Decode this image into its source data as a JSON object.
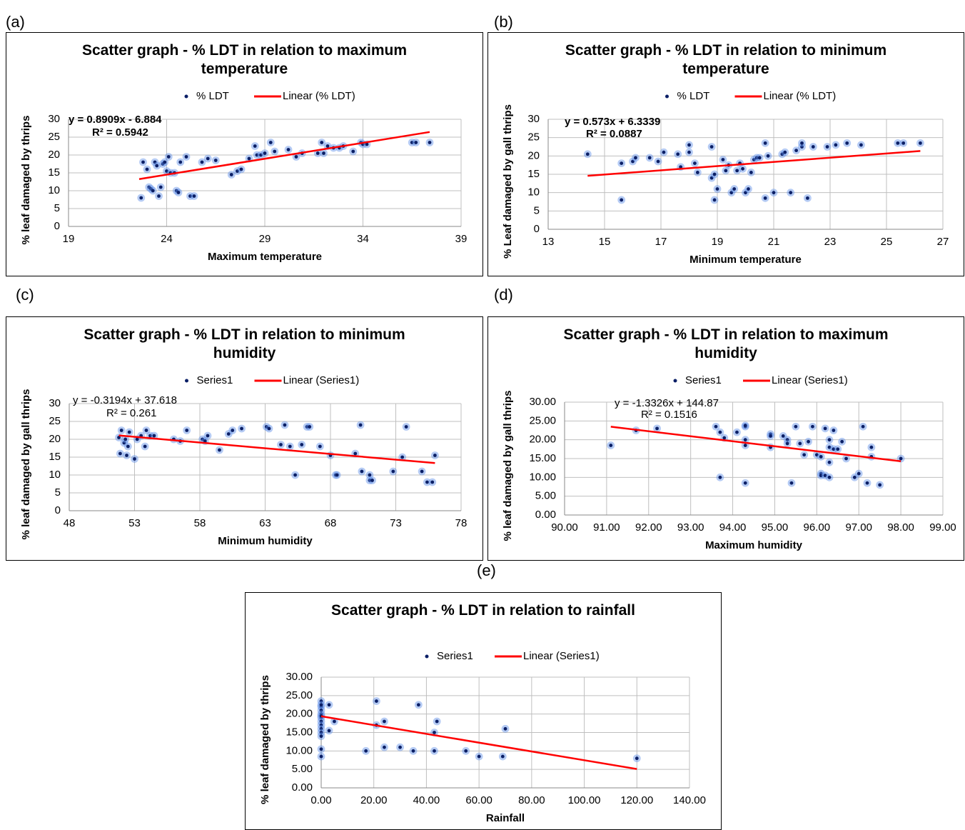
{
  "chart_data": [
    {
      "type": "scatter",
      "panel": "(a)",
      "title": "Scatter graph - % LDT in relation to maximum temperature",
      "xlabel": "Maximum temperature",
      "ylabel": "% leaf damaged by thrips",
      "annotations": [
        "y = 0.8909x - 6.884",
        "R² = 0.5942"
      ],
      "xlim": [
        19,
        39
      ],
      "xticks": [
        19,
        24,
        29,
        34,
        39
      ],
      "ylim": [
        0,
        30
      ],
      "yticks": [
        0,
        5,
        10,
        15,
        20,
        25,
        30
      ],
      "grid": true,
      "series": [
        {
          "name": "% LDT",
          "color": "#0b1f66",
          "x": [
            22.7,
            22.8,
            23,
            23.1,
            23.2,
            23.3,
            23.4,
            23.5,
            23.6,
            23.7,
            23.8,
            23.9,
            24,
            24.1,
            24.2,
            24.4,
            24.5,
            24.6,
            24.7,
            25,
            25.2,
            25.4,
            25.8,
            26.1,
            26.5,
            27.3,
            27.6,
            27.8,
            28.2,
            28.5,
            28.6,
            28.8,
            29,
            29.3,
            29.5,
            30.2,
            30.6,
            30.9,
            31.7,
            31.9,
            32,
            32.2,
            32.5,
            32.8,
            33,
            33.5,
            33.9,
            34,
            34.2,
            36.5,
            36.7,
            37.4
          ],
          "values": [
            8,
            18,
            16,
            11,
            10.5,
            10,
            18,
            17,
            8.5,
            11,
            17.5,
            18,
            15.5,
            19.5,
            15,
            15,
            10,
            9.5,
            18,
            19.5,
            8.5,
            8.5,
            18,
            19,
            18.5,
            14.5,
            15.5,
            16,
            19,
            22.5,
            20,
            20,
            20.5,
            23.5,
            21,
            21.5,
            19.5,
            20.5,
            20.5,
            23.5,
            20.5,
            22.5,
            22,
            22,
            22.5,
            21,
            23.5,
            23,
            23,
            23.5,
            23.5,
            23.5
          ]
        },
        {
          "name": "Linear (% LDT)",
          "color": "#ff0000",
          "line": true,
          "x": [
            22.6,
            37.4
          ],
          "values": [
            13.25,
            26.44
          ]
        }
      ]
    },
    {
      "type": "scatter",
      "panel": "(b)",
      "title": "Scatter graph - % LDT in relation to minimum temperature",
      "xlabel": "Minimum temperature",
      "ylabel": "% Leaf damaged by gall thrips",
      "annotations": [
        "y = 0.573x + 6.3339",
        "R² = 0.0887"
      ],
      "xlim": [
        13,
        27
      ],
      "xticks": [
        13,
        15,
        17,
        19,
        21,
        23,
        25,
        27
      ],
      "ylim": [
        0,
        30
      ],
      "yticks": [
        0,
        5,
        10,
        15,
        20,
        25,
        30
      ],
      "grid": true,
      "series": [
        {
          "name": "% LDT",
          "color": "#0b1f66",
          "x": [
            14.4,
            15.6,
            15.6,
            16,
            16.1,
            16.6,
            16.9,
            17.1,
            17.6,
            17.7,
            18,
            18,
            18.2,
            18.3,
            18.8,
            18.8,
            18.9,
            18.9,
            19,
            19.2,
            19.3,
            19.4,
            19.5,
            19.6,
            19.7,
            19.8,
            19.9,
            20,
            20.1,
            20.2,
            20.3,
            20.4,
            20.5,
            20.7,
            20.7,
            20.8,
            21,
            21.3,
            21.4,
            21.6,
            21.8,
            22,
            22,
            22.2,
            22.4,
            22.9,
            23.2,
            23.6,
            24.1,
            25.4,
            25.6,
            26.2
          ],
          "values": [
            20.5,
            8,
            18,
            18.5,
            19.5,
            19.5,
            18.5,
            21,
            20.5,
            17,
            21,
            23,
            18,
            15.5,
            22.5,
            14,
            8,
            15,
            11,
            19,
            16,
            17.5,
            10,
            11,
            16,
            18,
            16.5,
            10,
            11,
            15.5,
            19,
            19.5,
            19.5,
            8.5,
            23.5,
            20,
            10,
            20.5,
            21,
            10,
            21.5,
            22.5,
            23.5,
            8.5,
            22.5,
            22.5,
            23,
            23.5,
            23,
            23.5,
            23.5,
            23.5
          ]
        },
        {
          "name": "Linear (% LDT)",
          "color": "#ff0000",
          "line": true,
          "x": [
            14.4,
            26.2
          ],
          "values": [
            14.59,
            21.35
          ]
        }
      ]
    },
    {
      "type": "scatter",
      "panel": "(c)",
      "title": "Scatter graph - % LDT in relation to minimum humidity",
      "xlabel": "Minimum humidity",
      "ylabel": "% leaf damaged by gall thrips",
      "annotations": [
        "y = -0.3194x + 37.618",
        "R² = 0.261"
      ],
      "xlim": [
        48,
        78
      ],
      "xticks": [
        48,
        53,
        58,
        63,
        68,
        73,
        78
      ],
      "ylim": [
        0,
        30
      ],
      "yticks": [
        0,
        5,
        10,
        15,
        20,
        25,
        30
      ],
      "grid": true,
      "series": [
        {
          "name": "Series1",
          "color": "#0b1f66",
          "x": [
            51.8,
            51.9,
            52,
            52.2,
            52.3,
            52.4,
            52.5,
            52.6,
            53,
            53.2,
            53.5,
            53.8,
            53.9,
            54.2,
            54.5,
            56,
            56.5,
            57,
            58.2,
            58.4,
            58.6,
            59.5,
            60.2,
            60.5,
            61.2,
            63.1,
            63.3,
            64.2,
            64.5,
            64.9,
            65.3,
            65.8,
            66.2,
            66.4,
            67.2,
            68,
            68.4,
            68.5,
            69.9,
            70.3,
            70.4,
            71,
            71,
            71.2,
            72.8,
            73.5,
            73.8,
            75,
            75.4,
            75.8,
            76
          ],
          "values": [
            20.5,
            16,
            22.5,
            19,
            20,
            15.5,
            18,
            22,
            14.5,
            20,
            21,
            18,
            22.5,
            21,
            21,
            20,
            19.5,
            22.5,
            20,
            19.5,
            21,
            17,
            21.5,
            22.5,
            23,
            23.5,
            23,
            18.5,
            24,
            18,
            10,
            18.5,
            23.5,
            23.5,
            18,
            15.5,
            10,
            10,
            16,
            24,
            11,
            10,
            8.5,
            8.5,
            11,
            15,
            23.5,
            11,
            8,
            8,
            15.5
          ]
        },
        {
          "name": "Linear (Series1)",
          "color": "#ff0000",
          "line": true,
          "x": [
            51.8,
            76
          ],
          "values": [
            21.07,
            13.34
          ]
        }
      ]
    },
    {
      "type": "scatter",
      "panel": "(d)",
      "title": "Scatter graph - % LDT in relation to maximum humidity",
      "xlabel": "Maximum humidity",
      "ylabel": "% leaf damaged by gall thrips",
      "annotations": [
        "y = -1.3326x + 144.87",
        "R² = 0.1516"
      ],
      "xlim": [
        90,
        99
      ],
      "xticks": [
        {
          "value": 90,
          "label": "90.00"
        },
        {
          "value": 91,
          "label": "91.00"
        },
        {
          "value": 92,
          "label": "92.00"
        },
        {
          "value": 93,
          "label": "93.00"
        },
        {
          "value": 94,
          "label": "94.00"
        },
        {
          "value": 95,
          "label": "95.00"
        },
        {
          "value": 96,
          "label": "96.00"
        },
        {
          "value": 97,
          "label": "97.00"
        },
        {
          "value": 98,
          "label": "98.00"
        },
        {
          "value": 99,
          "label": "99.00"
        }
      ],
      "ylim": [
        0,
        30
      ],
      "yticks": [
        {
          "value": 0,
          "label": "0.00"
        },
        {
          "value": 5,
          "label": "5.00"
        },
        {
          "value": 10,
          "label": "10.00"
        },
        {
          "value": 15,
          "label": "15.00"
        },
        {
          "value": 20,
          "label": "20.00"
        },
        {
          "value": 25,
          "label": "25.00"
        },
        {
          "value": 30,
          "label": "30.00"
        }
      ],
      "grid": true,
      "series": [
        {
          "name": "Series1",
          "color": "#0b1f66",
          "x": [
            91.1,
            91.7,
            92.2,
            93.6,
            93.7,
            93.7,
            93.8,
            94.1,
            94.3,
            94.3,
            94.3,
            94.3,
            94.3,
            94.9,
            94.9,
            94.9,
            95.2,
            95.3,
            95.3,
            95.4,
            95.5,
            95.6,
            95.7,
            95.8,
            95.9,
            96,
            96.1,
            96.1,
            96.1,
            96.2,
            96.2,
            96.3,
            96.3,
            96.3,
            96.3,
            96.4,
            96.4,
            96.5,
            96.6,
            96.7,
            96.9,
            97,
            97.1,
            97.2,
            97.3,
            97.3,
            97.5,
            98
          ],
          "values": [
            18.5,
            22.5,
            23,
            23.5,
            10,
            22,
            20.5,
            22,
            23.5,
            23.8,
            8.5,
            20,
            18.5,
            21.5,
            21,
            18,
            21,
            20,
            19,
            8.5,
            23.5,
            19,
            16,
            19.5,
            23.5,
            16,
            11,
            10.5,
            15.5,
            23,
            10.5,
            20,
            14,
            10,
            18,
            17.5,
            22.5,
            17.5,
            19.5,
            15,
            10,
            11,
            23.5,
            8.5,
            18,
            15.5,
            8,
            15
          ]
        },
        {
          "name": "Linear (Series1)",
          "color": "#ff0000",
          "line": true,
          "x": [
            91.1,
            98
          ],
          "values": [
            23.47,
            14.28
          ]
        }
      ]
    },
    {
      "type": "scatter",
      "panel": "(e)",
      "title": "Scatter graph - % LDT in relation to rainfall",
      "xlabel": "Rainfall",
      "ylabel": "% leaf damaged by thrips",
      "xlim": [
        0,
        140
      ],
      "xticks": [
        {
          "value": 0,
          "label": "0.00"
        },
        {
          "value": 20,
          "label": "20.00"
        },
        {
          "value": 40,
          "label": "40.00"
        },
        {
          "value": 60,
          "label": "60.00"
        },
        {
          "value": 80,
          "label": "80.00"
        },
        {
          "value": 100,
          "label": "100.00"
        },
        {
          "value": 120,
          "label": "120.00"
        },
        {
          "value": 140,
          "label": "140.00"
        }
      ],
      "ylim": [
        0,
        30
      ],
      "yticks": [
        {
          "value": 0,
          "label": "0.00"
        },
        {
          "value": 5,
          "label": "5.00"
        },
        {
          "value": 10,
          "label": "10.00"
        },
        {
          "value": 15,
          "label": "15.00"
        },
        {
          "value": 20,
          "label": "20.00"
        },
        {
          "value": 25,
          "label": "25.00"
        },
        {
          "value": 30,
          "label": "30.00"
        }
      ],
      "grid": true,
      "series": [
        {
          "name": "Series1",
          "color": "#0b1f66",
          "x": [
            0,
            0,
            0,
            0,
            0,
            0,
            0,
            0,
            0,
            0,
            0,
            0,
            0,
            0,
            3,
            3,
            5,
            17,
            21,
            21,
            24,
            24,
            30,
            35,
            37,
            43,
            43,
            44,
            55,
            60,
            69,
            70,
            120
          ],
          "values": [
            22,
            21,
            20,
            19,
            18,
            17,
            23.5,
            16,
            15,
            10.5,
            8.5,
            14,
            22.5,
            19.5,
            22.5,
            15.5,
            18,
            10,
            23.5,
            17,
            11,
            18,
            11,
            10,
            22.5,
            15,
            10,
            18,
            10,
            8.5,
            8.5,
            16,
            8
          ]
        },
        {
          "name": "Linear (Series1)",
          "color": "#ff0000",
          "line": true,
          "x": [
            0,
            120
          ],
          "values": [
            19.4,
            5.1
          ]
        }
      ]
    }
  ]
}
